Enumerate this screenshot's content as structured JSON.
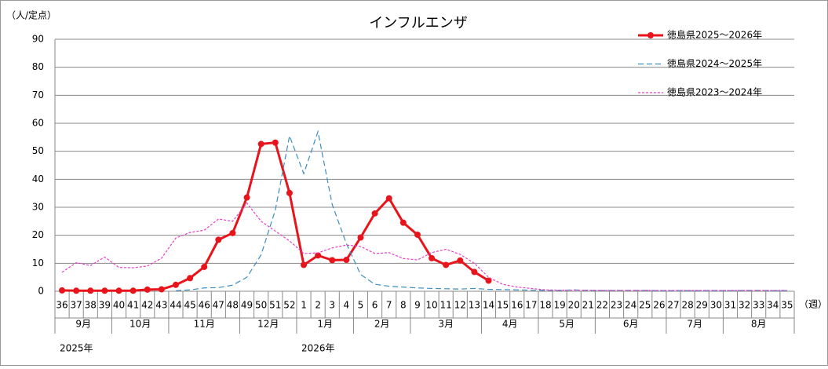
{
  "chart_data": {
    "type": "line",
    "title": "インフルエンザ",
    "y_unit": "（人/定点）",
    "x_unit": "（週）",
    "categories": [
      "36",
      "37",
      "38",
      "39",
      "40",
      "41",
      "42",
      "43",
      "44",
      "45",
      "46",
      "47",
      "48",
      "49",
      "50",
      "51",
      "52",
      "1",
      "2",
      "3",
      "4",
      "5",
      "6",
      "7",
      "8",
      "9",
      "10",
      "11",
      "12",
      "13",
      "14",
      "15",
      "16",
      "17",
      "18",
      "19",
      "20",
      "21",
      "22",
      "23",
      "24",
      "25",
      "26",
      "27",
      "28",
      "29",
      "30",
      "31",
      "32",
      "33",
      "34",
      "35"
    ],
    "month_labels": [
      "9月",
      null,
      null,
      null,
      "10月",
      null,
      null,
      null,
      "11月",
      null,
      null,
      null,
      null,
      "12月",
      null,
      null,
      null,
      "1月",
      null,
      null,
      null,
      "2月",
      null,
      null,
      null,
      "3月",
      null,
      null,
      null,
      null,
      "4月",
      null,
      null,
      null,
      "5月",
      null,
      null,
      null,
      "6月",
      null,
      null,
      null,
      null,
      "7月",
      null,
      null,
      null,
      "8月",
      null,
      null,
      null,
      null
    ],
    "year_labels": [
      "2025年",
      null,
      null,
      null,
      null,
      null,
      null,
      null,
      null,
      null,
      null,
      null,
      null,
      null,
      null,
      null,
      null,
      "2026年",
      null,
      null,
      null,
      null,
      null,
      null,
      null,
      null,
      null,
      null,
      null,
      null,
      null,
      null,
      null,
      null,
      null,
      null,
      null,
      null,
      null,
      null,
      null,
      null,
      null,
      null,
      null,
      null,
      null,
      null,
      null,
      null,
      null,
      null
    ],
    "series": [
      {
        "name": "徳島県2025～2026年",
        "color": "#e8141b",
        "style": "solid",
        "markers": true,
        "values": [
          0.3,
          0.2,
          0.2,
          0.2,
          0.2,
          0.2,
          0.6,
          0.7,
          2.3,
          4.7,
          8.7,
          18.4,
          20.8,
          33.5,
          52.6,
          53.1,
          35.1,
          9.4,
          12.8,
          11.1,
          11.2,
          19.2,
          27.8,
          33.2,
          24.5,
          20.2,
          11.8,
          9.4,
          11.0,
          6.9,
          3.8,
          null,
          null,
          null,
          null,
          null,
          null,
          null,
          null,
          null,
          null,
          null,
          null,
          null,
          null,
          null,
          null,
          null,
          null,
          null,
          null,
          null
        ]
      },
      {
        "name": "徳島県2024～2025年",
        "color": "#3a8fc0",
        "style": "dashed",
        "markers": false,
        "values": [
          null,
          null,
          null,
          null,
          null,
          null,
          null,
          null,
          0.2,
          0.5,
          1.2,
          1.3,
          2.2,
          5,
          13,
          29,
          55.5,
          42,
          57,
          31,
          17,
          6,
          2.5,
          1.8,
          1.5,
          1.2,
          1,
          0.9,
          0.8,
          1,
          0.7,
          0.6,
          0.5,
          0.4,
          0.3,
          0.3,
          0.5,
          0.3,
          0.3,
          0.3,
          0.3,
          0.3,
          0.2,
          0.2,
          0.2,
          0.2,
          0.2,
          0.2,
          0.3,
          0.3,
          0.2,
          0.2
        ]
      },
      {
        "name": "徳島県2023～2024年",
        "color": "#e83cc8",
        "style": "dotted",
        "markers": false,
        "values": [
          6.8,
          10.2,
          9.2,
          12.2,
          8.5,
          8.4,
          9,
          11.8,
          19,
          21,
          21.8,
          25.8,
          25,
          31.5,
          25,
          21.5,
          18,
          13.5,
          13.7,
          15.5,
          16.5,
          16,
          13.5,
          13.8,
          11.7,
          11.2,
          13.8,
          15,
          13.2,
          10,
          5,
          2.5,
          1.5,
          1,
          0.5,
          0.4,
          0.4,
          0.4,
          0.3,
          0.3,
          0.3,
          0.3,
          0.3,
          0.3,
          0.3,
          0.3,
          0.3,
          0.3,
          0.3,
          0.3,
          0.3,
          0.3
        ]
      }
    ],
    "ylim": [
      0,
      90
    ],
    "yticks": [
      0,
      10,
      20,
      30,
      40,
      50,
      60,
      70,
      80,
      90
    ],
    "grid": true,
    "legend": "top-right"
  }
}
